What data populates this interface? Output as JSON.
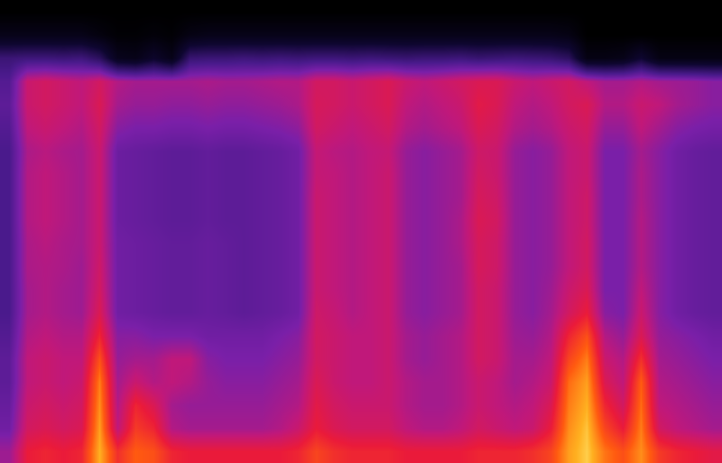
{
  "chart_data": {
    "type": "heatmap",
    "xlim": [
      -0.5,
      39.5
    ],
    "ylim": [
      -0.5,
      19.5
    ],
    "zlim": [
      0,
      100
    ],
    "tick_labels": false,
    "cells": [
      [
        55,
        70,
        72,
        70,
        72,
        92,
        74,
        82,
        80,
        72,
        70,
        70,
        70,
        70,
        70,
        70,
        72,
        78,
        74,
        72,
        72,
        72,
        70,
        70,
        70,
        70,
        72,
        72,
        72,
        74,
        78,
        90,
        95,
        85,
        80,
        88,
        76,
        72,
        70,
        68
      ],
      [
        48,
        64,
        66,
        64,
        66,
        90,
        60,
        76,
        72,
        58,
        56,
        56,
        56,
        56,
        56,
        58,
        62,
        70,
        66,
        64,
        64,
        64,
        60,
        58,
        58,
        60,
        64,
        62,
        60,
        62,
        70,
        88,
        94,
        78,
        70,
        86,
        64,
        60,
        58,
        56
      ],
      [
        46,
        62,
        64,
        62,
        64,
        88,
        58,
        72,
        66,
        56,
        54,
        54,
        54,
        54,
        54,
        56,
        58,
        68,
        64,
        62,
        62,
        62,
        58,
        56,
        56,
        58,
        62,
        60,
        58,
        60,
        66,
        86,
        92,
        72,
        64,
        84,
        60,
        58,
        56,
        54
      ],
      [
        44,
        60,
        62,
        60,
        62,
        86,
        56,
        62,
        58,
        60,
        58,
        54,
        52,
        52,
        52,
        54,
        56,
        66,
        62,
        60,
        60,
        62,
        58,
        56,
        56,
        58,
        62,
        60,
        56,
        58,
        62,
        84,
        90,
        66,
        60,
        82,
        58,
        56,
        54,
        52
      ],
      [
        44,
        60,
        62,
        60,
        60,
        80,
        54,
        56,
        56,
        60,
        60,
        52,
        50,
        50,
        50,
        52,
        54,
        64,
        62,
        60,
        60,
        62,
        56,
        54,
        56,
        58,
        64,
        62,
        56,
        56,
        60,
        78,
        86,
        62,
        58,
        74,
        56,
        54,
        52,
        50
      ],
      [
        42,
        58,
        60,
        58,
        58,
        72,
        52,
        52,
        50,
        50,
        50,
        48,
        48,
        48,
        48,
        50,
        52,
        64,
        62,
        60,
        60,
        62,
        56,
        54,
        56,
        58,
        64,
        62,
        55,
        54,
        58,
        72,
        80,
        58,
        54,
        66,
        54,
        52,
        50,
        48
      ],
      [
        40,
        56,
        58,
        56,
        55,
        66,
        48,
        47,
        46,
        45,
        45,
        46,
        45,
        44,
        45,
        46,
        48,
        63,
        61,
        58,
        60,
        62,
        54,
        52,
        54,
        56,
        64,
        62,
        54,
        52,
        56,
        64,
        70,
        52,
        50,
        62,
        52,
        48,
        46,
        45
      ],
      [
        40,
        56,
        58,
        56,
        55,
        64,
        48,
        47,
        46,
        45,
        45,
        46,
        45,
        44,
        45,
        46,
        48,
        62,
        60,
        58,
        60,
        62,
        54,
        52,
        54,
        56,
        64,
        62,
        54,
        52,
        55,
        62,
        66,
        50,
        50,
        60,
        52,
        48,
        46,
        45
      ],
      [
        40,
        57,
        58,
        57,
        55,
        63,
        48,
        47,
        46,
        45,
        45,
        46,
        45,
        44,
        45,
        46,
        48,
        62,
        60,
        58,
        60,
        62,
        54,
        52,
        54,
        56,
        65,
        63,
        54,
        52,
        54,
        60,
        64,
        50,
        50,
        58,
        52,
        48,
        46,
        45
      ],
      [
        40,
        57,
        59,
        57,
        56,
        62,
        48,
        47,
        46,
        45,
        45,
        46,
        45,
        44,
        45,
        46,
        48,
        62,
        60,
        58,
        60,
        62,
        54,
        52,
        54,
        57,
        65,
        63,
        54,
        52,
        54,
        60,
        64,
        50,
        50,
        58,
        52,
        48,
        46,
        45
      ],
      [
        40,
        58,
        60,
        58,
        56,
        62,
        47,
        46,
        45,
        44,
        44,
        45,
        44,
        44,
        45,
        46,
        48,
        62,
        60,
        58,
        60,
        62,
        54,
        52,
        54,
        57,
        66,
        64,
        54,
        52,
        54,
        60,
        63,
        50,
        50,
        58,
        52,
        48,
        46,
        45
      ],
      [
        40,
        58,
        60,
        58,
        56,
        62,
        47,
        46,
        45,
        44,
        44,
        45,
        44,
        44,
        45,
        46,
        48,
        62,
        60,
        58,
        60,
        62,
        54,
        52,
        54,
        56,
        65,
        63,
        54,
        52,
        54,
        60,
        63,
        50,
        50,
        57,
        52,
        48,
        46,
        45
      ],
      [
        40,
        58,
        60,
        58,
        56,
        62,
        47,
        46,
        45,
        44,
        44,
        45,
        44,
        44,
        45,
        46,
        48,
        61,
        60,
        58,
        60,
        62,
        54,
        52,
        54,
        56,
        64,
        62,
        54,
        52,
        54,
        60,
        62,
        50,
        50,
        57,
        52,
        48,
        46,
        45
      ],
      [
        40,
        57,
        59,
        57,
        56,
        62,
        47,
        46,
        45,
        44,
        44,
        45,
        44,
        44,
        45,
        46,
        48,
        61,
        59,
        58,
        60,
        61,
        54,
        52,
        54,
        56,
        63,
        62,
        54,
        52,
        54,
        60,
        62,
        50,
        50,
        56,
        52,
        48,
        46,
        45
      ],
      [
        42,
        60,
        62,
        60,
        58,
        64,
        52,
        50,
        50,
        49,
        49,
        50,
        49,
        49,
        50,
        51,
        53,
        64,
        62,
        60,
        62,
        64,
        58,
        56,
        58,
        60,
        66,
        64,
        58,
        56,
        58,
        62,
        64,
        54,
        54,
        60,
        56,
        52,
        50,
        49
      ],
      [
        44,
        62,
        64,
        62,
        60,
        66,
        56,
        54,
        54,
        53,
        53,
        54,
        53,
        53,
        54,
        55,
        57,
        65,
        64,
        62,
        64,
        66,
        60,
        58,
        60,
        62,
        68,
        66,
        60,
        58,
        60,
        64,
        66,
        58,
        58,
        62,
        60,
        56,
        54,
        52
      ],
      [
        42,
        62,
        64,
        62,
        60,
        64,
        58,
        56,
        56,
        56,
        56,
        57,
        56,
        56,
        57,
        58,
        58,
        64,
        64,
        62,
        64,
        66,
        62,
        60,
        62,
        64,
        66,
        66,
        62,
        60,
        62,
        64,
        60,
        56,
        56,
        58,
        56,
        55,
        54,
        52
      ],
      [
        35,
        36,
        36,
        35,
        36,
        30,
        12,
        10,
        18,
        10,
        34,
        35,
        35,
        36,
        35,
        36,
        35,
        36,
        36,
        35,
        36,
        35,
        34,
        35,
        35,
        36,
        34,
        35,
        36,
        35,
        34,
        30,
        8,
        8,
        10,
        20,
        8,
        8,
        8,
        8
      ],
      [
        10,
        10,
        10,
        10,
        10,
        6,
        2,
        2,
        4,
        2,
        8,
        10,
        10,
        10,
        10,
        10,
        10,
        10,
        10,
        10,
        10,
        10,
        10,
        10,
        10,
        10,
        10,
        10,
        10,
        10,
        10,
        8,
        0,
        0,
        0,
        0,
        0,
        0,
        0,
        0
      ],
      [
        0,
        0,
        0,
        0,
        0,
        0,
        0,
        0,
        0,
        0,
        0,
        0,
        0,
        0,
        0,
        0,
        0,
        0,
        0,
        0,
        0,
        0,
        0,
        0,
        0,
        0,
        0,
        0,
        0,
        0,
        0,
        0,
        0,
        0,
        0,
        0,
        0,
        0,
        0,
        0
      ]
    ]
  }
}
